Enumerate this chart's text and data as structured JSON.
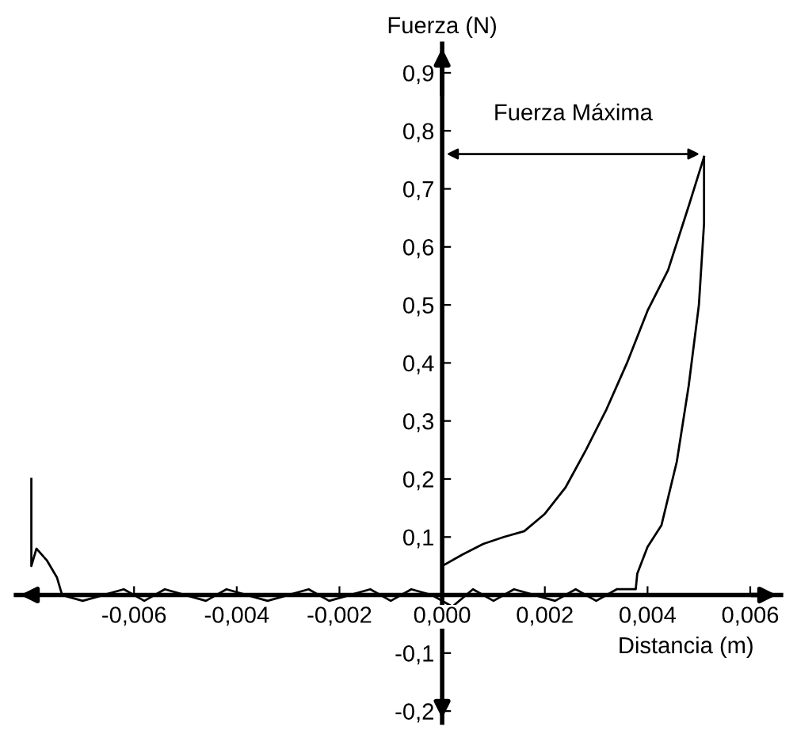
{
  "chart_data": {
    "type": "line",
    "xlabel": "Distancia (m)",
    "ylabel": "Fuerza (N)",
    "xlim": [
      -0.0083,
      0.0066
    ],
    "ylim": [
      -0.22,
      0.95
    ],
    "xticks": [
      {
        "value": -0.006,
        "label": "-0,006"
      },
      {
        "value": -0.004,
        "label": "-0,004"
      },
      {
        "value": -0.002,
        "label": "-0,002"
      },
      {
        "value": 0,
        "label": "0,000"
      },
      {
        "value": 0.002,
        "label": "0,002"
      },
      {
        "value": 0.004,
        "label": "0,004"
      },
      {
        "value": 0.006,
        "label": "0,006"
      }
    ],
    "yticks": [
      {
        "value": -0.2,
        "label": "-0,2"
      },
      {
        "value": -0.1,
        "label": "-0,1"
      },
      {
        "value": 0.1,
        "label": "0,1"
      },
      {
        "value": 0.2,
        "label": "0,2"
      },
      {
        "value": 0.3,
        "label": "0,3"
      },
      {
        "value": 0.4,
        "label": "0,4"
      },
      {
        "value": 0.5,
        "label": "0,5"
      },
      {
        "value": 0.6,
        "label": "0,6"
      },
      {
        "value": 0.7,
        "label": "0,7"
      },
      {
        "value": 0.8,
        "label": "0,8"
      },
      {
        "value": 0.9,
        "label": "0,9"
      }
    ],
    "grid": false,
    "legend": false,
    "marker": "none",
    "line_style": "solid",
    "series": [
      {
        "color": "#000000",
        "x": [
          0,
          0.0004,
          0.0008,
          0.0012,
          0.0016,
          0.002,
          0.0024,
          0.0028,
          0.0032,
          0.0036,
          0.004,
          0.0044,
          0.0048,
          0.0051
        ],
        "values": [
          0.05,
          0.07,
          0.088,
          0.1,
          0.11,
          0.14,
          0.185,
          0.25,
          0.32,
          0.4,
          0.49,
          0.56,
          0.67,
          0.755
        ]
      },
      {
        "color": "#000000",
        "x": [
          0.0051,
          0.0051,
          0.005,
          0.0048,
          0.00457,
          0.00427,
          0.004,
          0.0038,
          0.00377,
          0.0034,
          0.003,
          0.0026,
          0.0022,
          0.0018,
          0.0014,
          0.001,
          0.0006,
          0.0002,
          -0.0002,
          -0.0006,
          -0.001,
          -0.0014,
          -0.0018,
          -0.0022,
          -0.0026,
          -0.003,
          -0.0034,
          -0.0038,
          -0.0042,
          -0.0046,
          -0.005,
          -0.0054,
          -0.0058,
          -0.0062,
          -0.0066,
          -0.007,
          -0.0074,
          -0.0075,
          -0.0077,
          -0.0079,
          -0.008,
          -0.008
        ],
        "values": [
          0.755,
          0.64,
          0.5,
          0.36,
          0.23,
          0.12,
          0.083,
          0.037,
          0.01,
          0.01,
          -0.01,
          0.01,
          -0.01,
          0.0,
          0.01,
          -0.01,
          0.01,
          -0.02,
          0.0,
          0.01,
          -0.01,
          0.01,
          0.0,
          -0.01,
          0.01,
          0.0,
          -0.01,
          0.0,
          0.01,
          -0.01,
          0.0,
          0.01,
          -0.01,
          0.01,
          0.0,
          -0.01,
          0.0,
          0.03,
          0.06,
          0.08,
          0.05,
          0.2
        ]
      }
    ],
    "annotations": [
      {
        "text": "Fuerza Máxima",
        "x": 0.0051,
        "y": 0.76
      }
    ]
  }
}
